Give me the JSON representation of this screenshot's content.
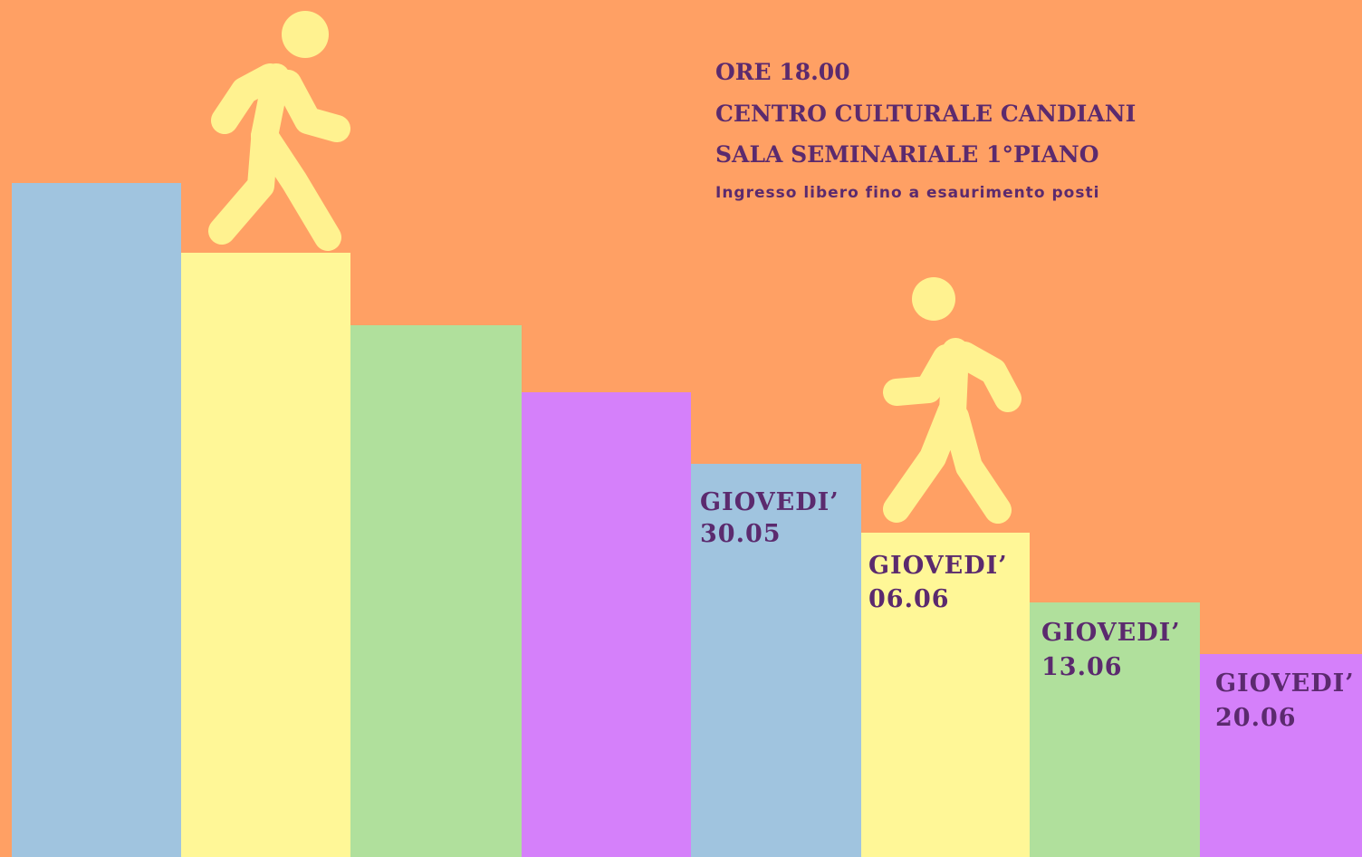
{
  "header": {
    "lines": [
      "ORE 18.00",
      "CENTRO CULTURALE CANDIANI",
      "SALA SEMINARIALE 1°PIANO"
    ],
    "note": "Ingresso libero fino a esaurimento posti"
  },
  "events": [
    {
      "day": "GIOVEDI’",
      "date": "30.05"
    },
    {
      "day": "GIOVEDI’",
      "date": "06.06"
    },
    {
      "day": "GIOVEDI’",
      "date": "13.06"
    },
    {
      "day": "GIOVEDI’",
      "date": "20.06"
    }
  ]
}
